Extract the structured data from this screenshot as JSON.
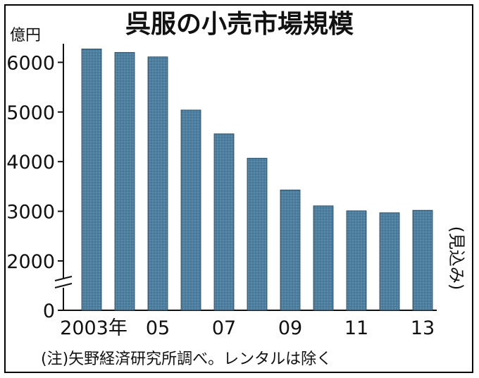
{
  "chart_data": {
    "type": "bar",
    "title": "呉服の小売市場規模",
    "ylabel": "億円",
    "xlabel": "",
    "categories": [
      "2003",
      "2004",
      "2005",
      "2006",
      "2007",
      "2008",
      "2009",
      "2010",
      "2011",
      "2012",
      "2013"
    ],
    "values": [
      6270,
      6200,
      6110,
      5040,
      4560,
      4070,
      3430,
      3110,
      3010,
      2970,
      3020
    ],
    "x_tick_labels": [
      "2003年",
      "05",
      "07",
      "09",
      "11",
      "13"
    ],
    "y_ticks": [
      0,
      2000,
      3000,
      4000,
      5000,
      6000
    ],
    "y_tick_labels": [
      "0",
      "2000",
      "3000",
      "4000",
      "5000",
      "6000"
    ],
    "ylim": [
      0,
      6500
    ],
    "axis_break": true,
    "annotation": "(見込み)",
    "note": "(注)矢野経済研究所調べ。レンタルは除く",
    "grid": false,
    "bar_color": "#4f7f9f"
  }
}
